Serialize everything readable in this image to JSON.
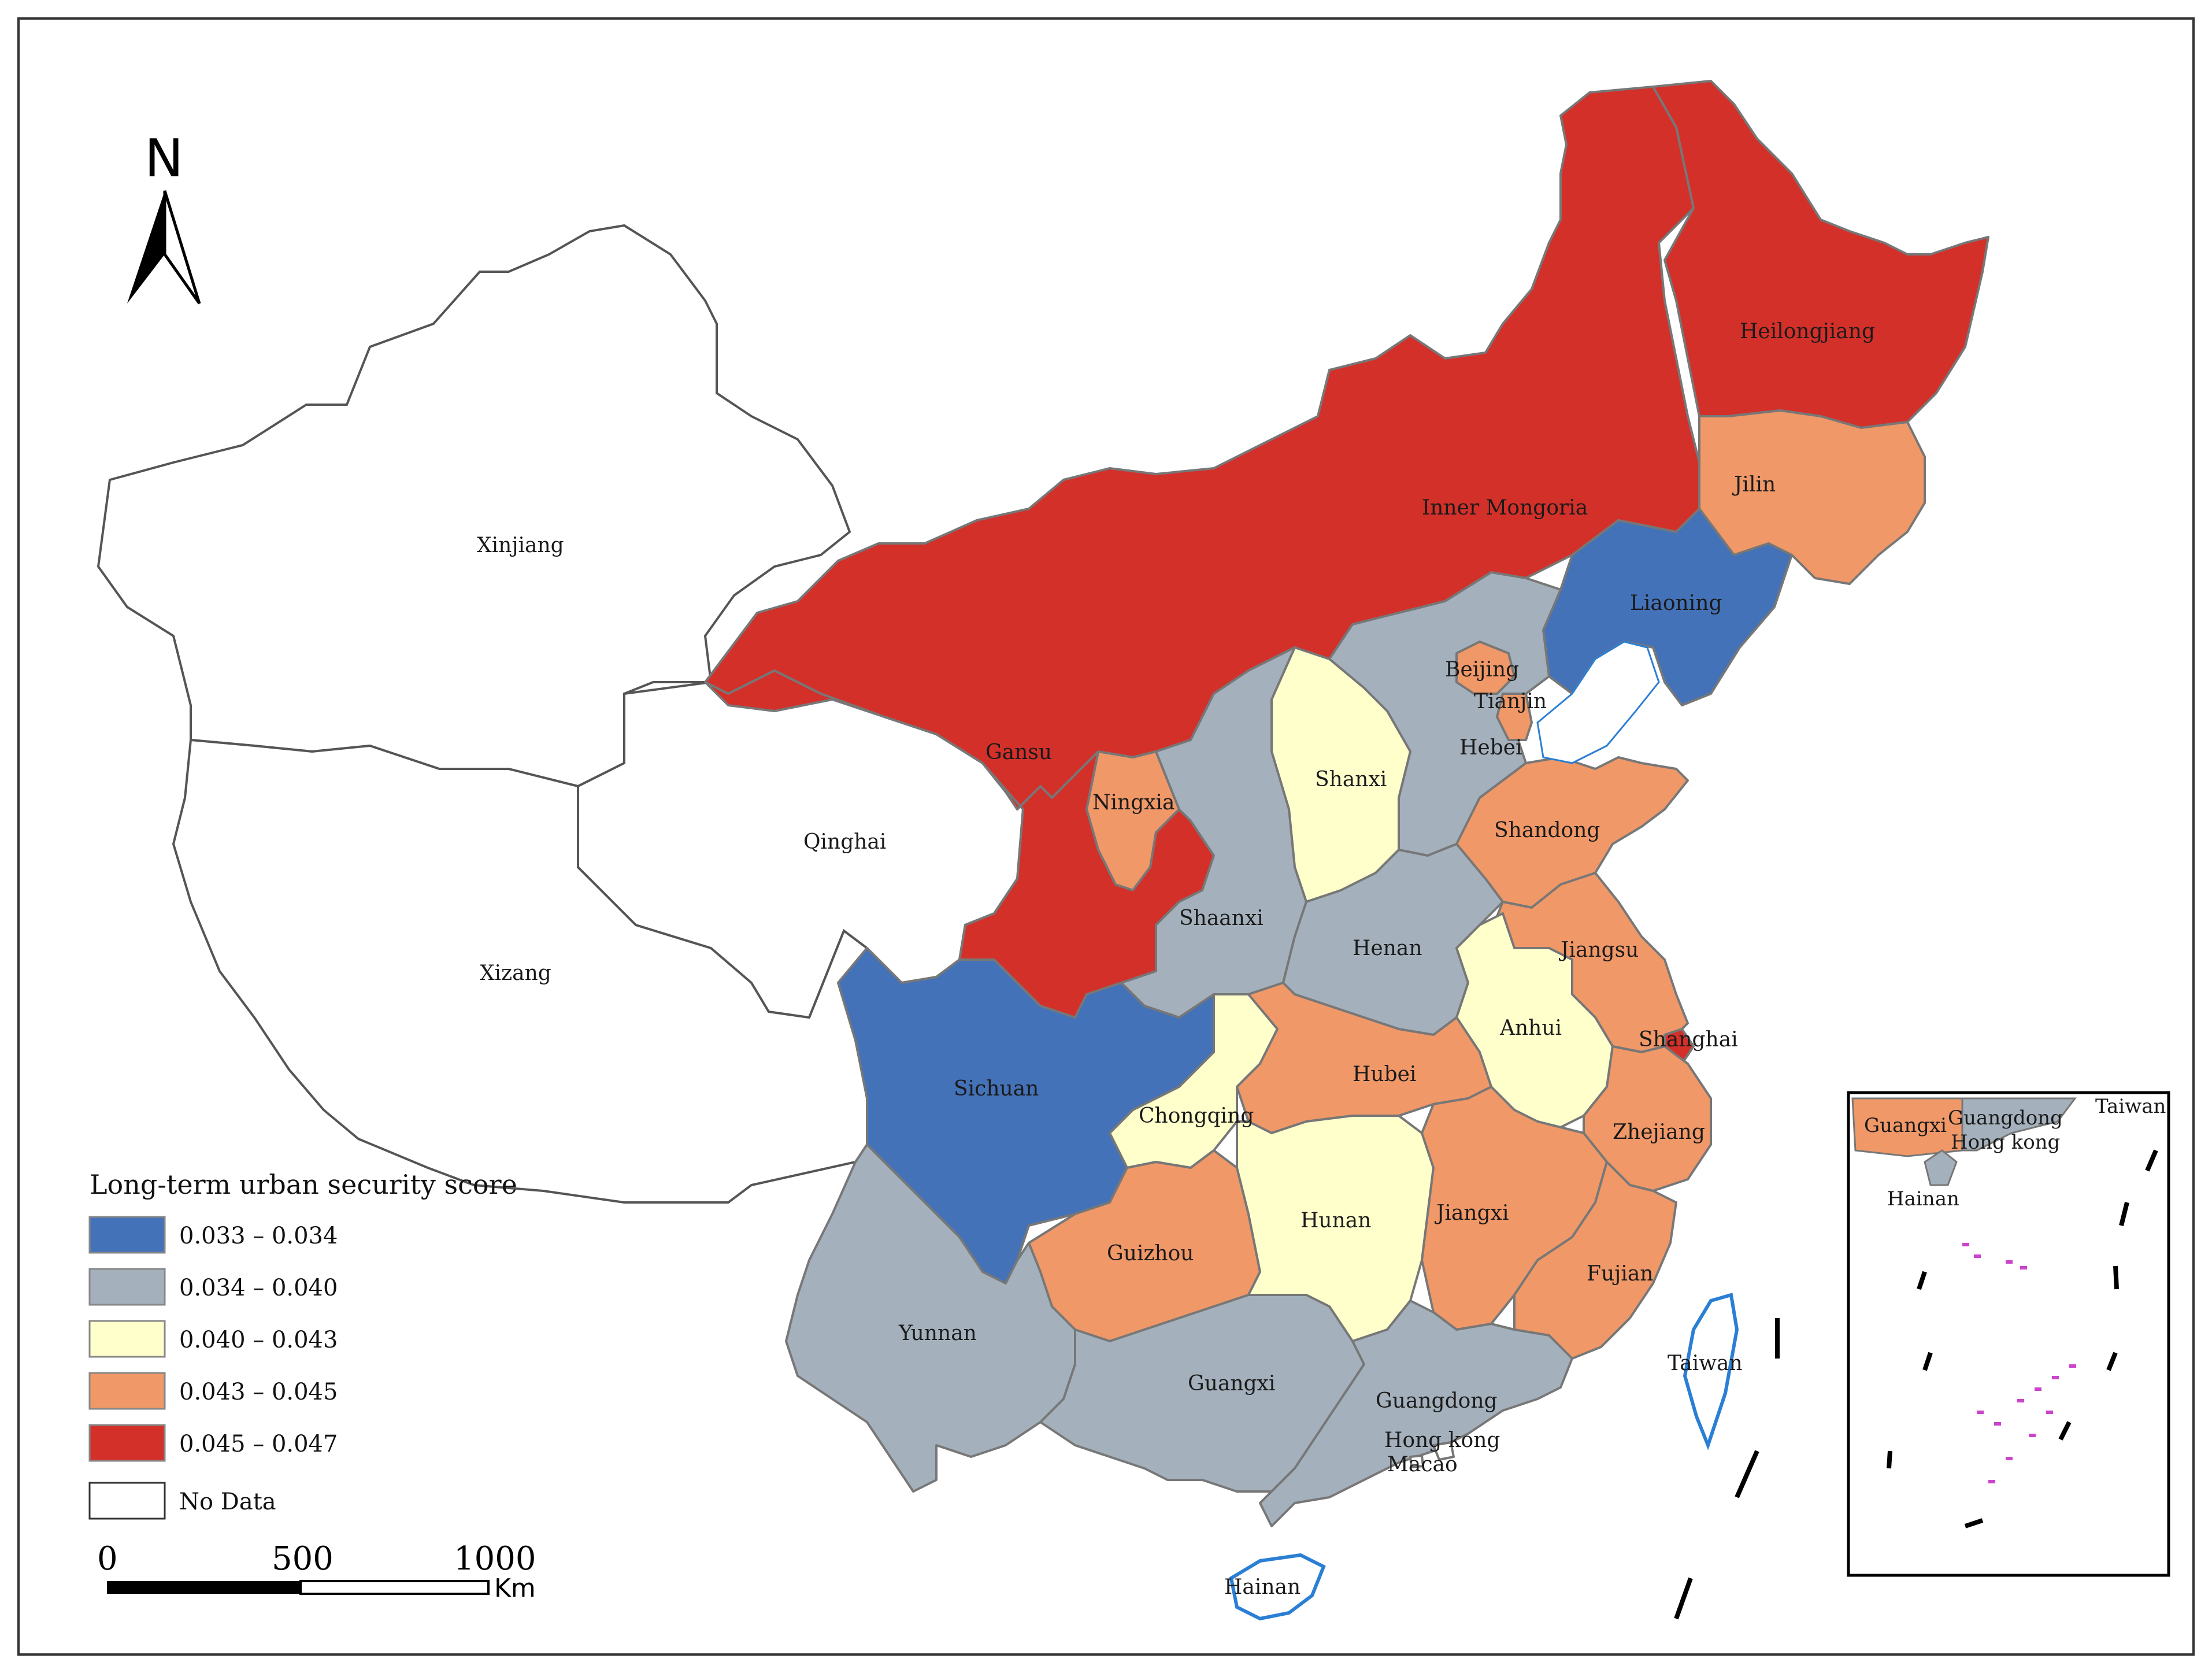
{
  "legend": {
    "title": "Long-term urban security score",
    "classes": [
      {
        "label": "0.033 – 0.034",
        "color": "#4472b8"
      },
      {
        "label": "0.034 – 0.040",
        "color": "#a4b1bc"
      },
      {
        "label": "0.040 – 0.043",
        "color": "#ffffcc"
      },
      {
        "label": "0.043 – 0.045",
        "color": "#f09868"
      },
      {
        "label": "0.045 – 0.047",
        "color": "#d3302a"
      }
    ],
    "no_data_label": "No Data",
    "no_data_color": "#ffffff"
  },
  "north_arrow": {
    "label": "N"
  },
  "scale_bar": {
    "ticks": [
      "0",
      "500",
      "1000"
    ],
    "unit": "Km"
  },
  "provinces": [
    {
      "name": "Xinjiang",
      "class": -1
    },
    {
      "name": "Xizang",
      "class": -1
    },
    {
      "name": "Qinghai",
      "class": -1
    },
    {
      "name": "Gansu",
      "class": 4
    },
    {
      "name": "Inner Mongoria",
      "class": 4
    },
    {
      "name": "Heilongjiang",
      "class": 4
    },
    {
      "name": "Jilin",
      "class": 4
    },
    {
      "name": "Liaoning",
      "class": 3
    },
    {
      "name": "Beijing",
      "class": 0
    },
    {
      "name": "Tianjin",
      "class": 1
    },
    {
      "name": "Hebei",
      "class": 3
    },
    {
      "name": "Shanxi",
      "class": 3
    },
    {
      "name": "Shandong",
      "class": 2
    },
    {
      "name": "Ningxia",
      "class": 3
    },
    {
      "name": "Shaanxi",
      "class": 3
    },
    {
      "name": "Henan",
      "class": 4
    },
    {
      "name": "Jiangsu",
      "class": 1
    },
    {
      "name": "Shanghai",
      "class": 1
    },
    {
      "name": "Anhui",
      "class": 3
    },
    {
      "name": "Sichuan",
      "class": 4
    },
    {
      "name": "Chongqing",
      "class": 2
    },
    {
      "name": "Hubei",
      "class": 3
    },
    {
      "name": "Zhejiang",
      "class": 0
    },
    {
      "name": "Guizhou",
      "class": 2
    },
    {
      "name": "Hunan",
      "class": 3
    },
    {
      "name": "Jiangxi",
      "class": 3
    },
    {
      "name": "Fujian",
      "class": 2
    },
    {
      "name": "Yunnan",
      "class": 3
    },
    {
      "name": "Guangxi",
      "class": 3
    },
    {
      "name": "Guangdong",
      "class": 1
    },
    {
      "name": "Hong kong",
      "class": 1
    },
    {
      "name": "Macao",
      "class": 1
    },
    {
      "name": "Taiwan",
      "class": -1
    },
    {
      "name": "Hainan",
      "class": -1
    }
  ],
  "inset": {
    "labels": [
      "Guangxi",
      "Guangdong",
      "Hong kong",
      "Taiwan",
      "Hainan"
    ]
  }
}
